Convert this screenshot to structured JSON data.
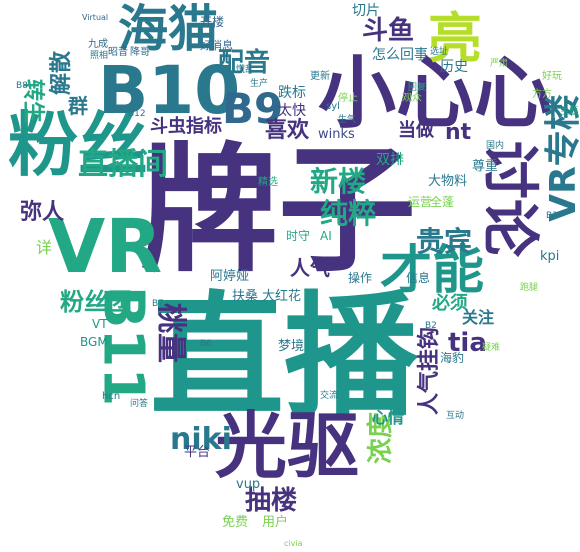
{
  "palette": {
    "purple": "#472f7d",
    "teal": "#2a788e",
    "green": "#22a884",
    "blue_green": "#1f968b",
    "light_green": "#7ad151",
    "yellow_green": "#b5de2b",
    "yellow": "#fde725"
  },
  "words": {
    "paizi": "牌子",
    "zhibo": "直播",
    "xiaoxinxin": "小心心",
    "guangqu": "光驱",
    "fensi": "粉丝",
    "vr": "VR",
    "b10": "B10",
    "b9": "B9",
    "b11": "B11",
    "haimao": "海猫",
    "liang": "亮",
    "taolun": "讨论",
    "caineng": "才能",
    "zhubolou": "专楼",
    "vr_zhuanlou": "VR专楼",
    "zhibojian": "直播间",
    "xinlou": "新楼",
    "fensituan": "粉丝团",
    "taoliang": "桃量",
    "chunzui": "纯粹",
    "guibin": "贵宾",
    "choulou": "抽楼",
    "niki": "niki",
    "douyu": "斗鱼",
    "peiyin": "配音",
    "xihuan": "喜欢",
    "mirenren": "弥人",
    "zhuansheng": "转生",
    "jiesan": "解散",
    "qun": "群",
    "renqi": "人气",
    "tia": "tia",
    "nt": "nt",
    "nongdu": "浓度",
    "xinqing": "心情",
    "dangzuo": "当做",
    "douchong": "斗虫",
    "zhibiao": "指标",
    "renqiguaji": "人气挂钩",
    "bixu": "必须",
    "guanzhu": "关注",
    "taikuai": "太快",
    "tiebiao": "跌标",
    "shuangpai": "双排",
    "zenmehuishi": "怎么回事",
    "lishi": "历史",
    "qiepian": "切片",
    "kaiguan": "开楼",
    "winks": "winks",
    "kpi": "kpi",
    "ami": "阿婷娅",
    "pingtai": "平台",
    "mengjing": "梦境",
    "vup": "vup",
    "mianfei": "免费",
    "yonghu": "用户",
    "fulou": "扶桑",
    "dahonghua": "大红花",
    "zunzhong": "尊重",
    "dawuliao": "大物料",
    "haibao": "海豹",
    "xinxi": "信息",
    "caozuo": "操作",
    "vt": "VT",
    "bgm": "BGM",
    "shishou": "时守",
    "ai": "AI",
    "yunying": "运营",
    "quanzhong": "全蓬",
    "xiang": "详",
    "zhaoyin": "昭音",
    "jiangguo": "降哥",
    "haoxiaoxi": "好消息",
    "jiuyuan": "九成",
    "shengqi": "生气",
    "shengqu": "停止",
    "zhaoxiang": "照相",
    "guanggao": "观众",
    "huida": "回复",
    "shengchan": "生产",
    "huanglu": "慌乱",
    "yansu": "严肃",
    "zhuti": "主题",
    "gengxin": "更新",
    "jingxuan": "精选",
    "ciyin": "civia",
    "xuanzhi": "选址",
    "yinan": "疑难",
    "fangfang": "方方",
    "hao": "好玩",
    "paotui": "跑腿",
    "wenda": "问答",
    "jiaoliu": "交流",
    "guojiao": "国内",
    "hudong": "互动",
    "b3": "B3",
    "b7": "B7",
    "b12": "B12",
    "b6": "B6",
    "b2": "B2",
    "b8": "B8",
    "hcn": "hcn",
    "syl": "syl",
    "virtual": "Virtual"
  }
}
